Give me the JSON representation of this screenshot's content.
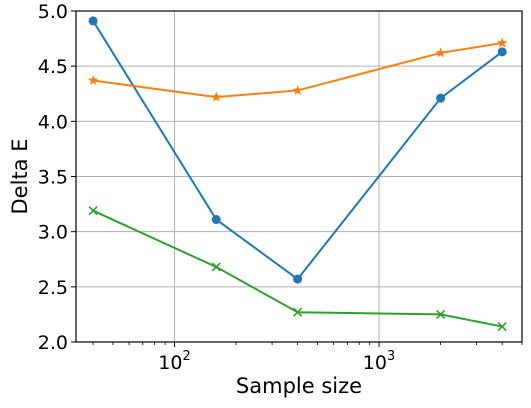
{
  "chart_data": {
    "type": "line",
    "title": "",
    "xlabel": "Sample size",
    "ylabel": "Delta E",
    "xscale": "log",
    "xlim": [
      33,
      5000
    ],
    "ylim": [
      2.0,
      5.0
    ],
    "grid": true,
    "legend": "none",
    "x_ticks": [
      {
        "value": 100,
        "base": "10",
        "exp": "2"
      },
      {
        "value": 1000,
        "base": "10",
        "exp": "3"
      }
    ],
    "y_ticks": [
      {
        "value": 2.0,
        "label": "2.0"
      },
      {
        "value": 2.5,
        "label": "2.5"
      },
      {
        "value": 3.0,
        "label": "3.0"
      },
      {
        "value": 3.5,
        "label": "3.5"
      },
      {
        "value": 4.0,
        "label": "4.0"
      },
      {
        "value": 4.5,
        "label": "4.5"
      },
      {
        "value": 5.0,
        "label": "5.0"
      }
    ],
    "series": [
      {
        "color": "#1f77b4",
        "marker": "circle",
        "x": [
          40,
          160,
          400,
          2000,
          4000
        ],
        "y": [
          4.91,
          3.11,
          2.57,
          4.21,
          4.63
        ]
      },
      {
        "color": "#ff7f0e",
        "marker": "star",
        "x": [
          40,
          160,
          400,
          2000,
          4000
        ],
        "y": [
          4.37,
          4.22,
          4.28,
          4.62,
          4.71
        ]
      },
      {
        "color": "#2ca02c",
        "marker": "x",
        "x": [
          40,
          160,
          400,
          2000,
          4000
        ],
        "y": [
          3.19,
          2.68,
          2.27,
          2.25,
          2.14
        ]
      }
    ]
  }
}
